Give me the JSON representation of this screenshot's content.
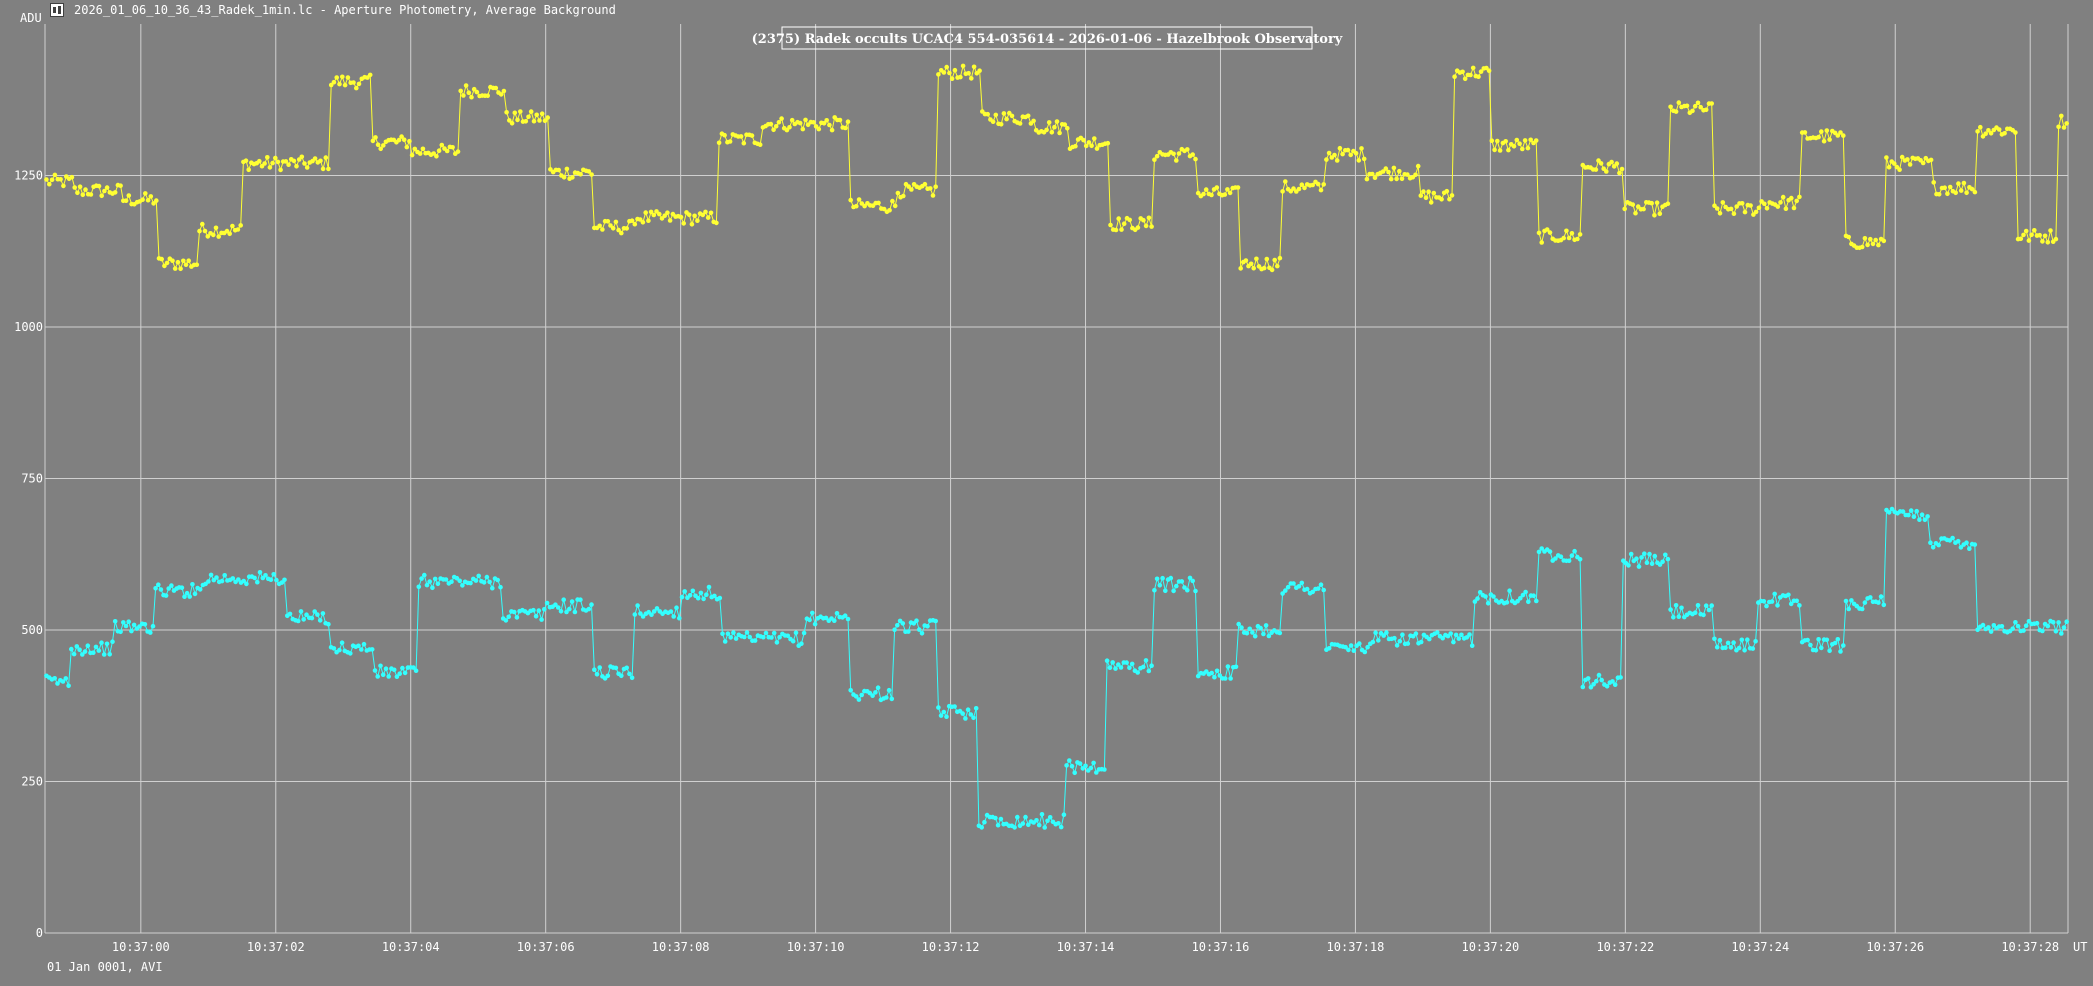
{
  "window": {
    "title": "2026_01_06_10_36_43_Radek_1min.lc - Aperture Photometry, Average Background",
    "icon": "lightcurve-app-icon"
  },
  "footer": {
    "text": "01 Jan 0001, AVI"
  },
  "colors": {
    "background": "#808080",
    "grid": "#d0d0d0",
    "text": "#ffffff",
    "target_series": "#ffff33",
    "comparison_series": "#33ffff"
  },
  "chart_data": {
    "type": "line",
    "title": "(2375) Radek occults UCAC4 554-035614 - 2026-01-06 - Hazelbrook Observatory",
    "ylabel": "ADU",
    "xlabel": "UT",
    "ylim": [
      0,
      1500
    ],
    "xlim": [
      "10:36:58.58",
      "10:37:28.56"
    ],
    "grid": true,
    "marker": "circle",
    "yticks": [
      0,
      250,
      500,
      750,
      1000,
      1250
    ],
    "xticks": [
      "10:37:00",
      "10:37:02",
      "10:37:04",
      "10:37:06",
      "10:37:08",
      "10:37:10",
      "10:37:12",
      "10:37:14",
      "10:37:16",
      "10:37:18",
      "10:37:20",
      "10:37:22",
      "10:37:24",
      "10:37:26",
      "10:37:28"
    ],
    "series": [
      {
        "color": "#ffff33",
        "segments": [
          [
            "10:36:58.58",
            "10:36:59.00",
            1240
          ],
          [
            "10:36:59.00",
            "10:36:59.72",
            1225
          ],
          [
            "10:36:59.72",
            "10:37:00.25",
            1210
          ],
          [
            "10:37:00.25",
            "10:37:00.85",
            1105
          ],
          [
            "10:37:00.85",
            "10:37:01.50",
            1160
          ],
          [
            "10:37:01.50",
            "10:37:02.80",
            1270
          ],
          [
            "10:37:02.80",
            "10:37:03.42",
            1405
          ],
          [
            "10:37:03.42",
            "10:37:04.00",
            1305
          ],
          [
            "10:37:04.00",
            "10:37:04.72",
            1290
          ],
          [
            "10:37:04.72",
            "10:37:05.40",
            1390
          ],
          [
            "10:37:05.40",
            "10:37:06.05",
            1345
          ],
          [
            "10:37:06.05",
            "10:37:06.70",
            1255
          ],
          [
            "10:37:06.70",
            "10:37:07.30",
            1165
          ],
          [
            "10:37:07.30",
            "10:37:08.55",
            1180
          ],
          [
            "10:37:08.55",
            "10:37:09.20",
            1310
          ],
          [
            "10:37:09.20",
            "10:37:10.50",
            1335
          ],
          [
            "10:37:10.50",
            "10:37:11.20",
            1200
          ],
          [
            "10:37:11.20",
            "10:37:11.80",
            1225
          ],
          [
            "10:37:11.80",
            "10:37:12.45",
            1420
          ],
          [
            "10:37:12.45",
            "10:37:13.25",
            1345
          ],
          [
            "10:37:13.25",
            "10:37:13.75",
            1330
          ],
          [
            "10:37:13.75",
            "10:37:14.35",
            1305
          ],
          [
            "10:37:14.35",
            "10:37:15.00",
            1170
          ],
          [
            "10:37:15.00",
            "10:37:15.65",
            1285
          ],
          [
            "10:37:15.65",
            "10:37:16.28",
            1220
          ],
          [
            "10:37:16.28",
            "10:37:16.90",
            1105
          ],
          [
            "10:37:16.90",
            "10:37:17.55",
            1230
          ],
          [
            "10:37:17.55",
            "10:37:18.15",
            1285
          ],
          [
            "10:37:18.15",
            "10:37:18.95",
            1255
          ],
          [
            "10:37:18.95",
            "10:37:19.45",
            1215
          ],
          [
            "10:37:19.45",
            "10:37:20.00",
            1420
          ],
          [
            "10:37:20.00",
            "10:37:20.70",
            1300
          ],
          [
            "10:37:20.70",
            "10:37:21.35",
            1150
          ],
          [
            "10:37:21.35",
            "10:37:21.97",
            1265
          ],
          [
            "10:37:21.97",
            "10:37:22.65",
            1195
          ],
          [
            "10:37:22.65",
            "10:37:23.30",
            1360
          ],
          [
            "10:37:23.30",
            "10:37:24.00",
            1195
          ],
          [
            "10:37:24.00",
            "10:37:24.60",
            1205
          ],
          [
            "10:37:24.60",
            "10:37:25.25",
            1315
          ],
          [
            "10:37:25.25",
            "10:37:25.85",
            1140
          ],
          [
            "10:37:25.85",
            "10:37:26.55",
            1270
          ],
          [
            "10:37:26.55",
            "10:37:27.20",
            1230
          ],
          [
            "10:37:27.20",
            "10:37:27.80",
            1325
          ],
          [
            "10:37:27.80",
            "10:37:28.40",
            1150
          ],
          [
            "10:37:28.40",
            "10:37:28.56",
            1340
          ]
        ]
      },
      {
        "color": "#33ffff",
        "segments": [
          [
            "10:36:58.58",
            "10:36:58.95",
            415
          ],
          [
            "10:36:58.95",
            "10:36:59.60",
            470
          ],
          [
            "10:36:59.60",
            "10:37:00.20",
            505
          ],
          [
            "10:37:00.20",
            "10:37:00.90",
            565
          ],
          [
            "10:37:00.90",
            "10:37:02.15",
            585
          ],
          [
            "10:37:02.15",
            "10:37:02.80",
            520
          ],
          [
            "10:37:02.80",
            "10:37:03.45",
            470
          ],
          [
            "10:37:03.45",
            "10:37:04.10",
            430
          ],
          [
            "10:37:04.10",
            "10:37:05.35",
            580
          ],
          [
            "10:37:05.35",
            "10:37:06.00",
            525
          ],
          [
            "10:37:06.00",
            "10:37:06.70",
            540
          ],
          [
            "10:37:06.70",
            "10:37:07.30",
            430
          ],
          [
            "10:37:07.30",
            "10:37:08.00",
            530
          ],
          [
            "10:37:08.00",
            "10:37:08.60",
            560
          ],
          [
            "10:37:08.60",
            "10:37:09.85",
            485
          ],
          [
            "10:37:09.85",
            "10:37:10.50",
            520
          ],
          [
            "10:37:10.50",
            "10:37:11.15",
            395
          ],
          [
            "10:37:11.15",
            "10:37:11.80",
            505
          ],
          [
            "10:37:11.80",
            "10:37:12.40",
            365
          ],
          [
            "10:37:12.40",
            "10:37:13.70",
            185
          ],
          [
            "10:37:13.70",
            "10:37:14.30",
            275
          ],
          [
            "10:37:14.30",
            "10:37:15.00",
            440
          ],
          [
            "10:37:15.00",
            "10:37:15.65",
            575
          ],
          [
            "10:37:15.65",
            "10:37:16.25",
            430
          ],
          [
            "10:37:16.25",
            "10:37:16.90",
            500
          ],
          [
            "10:37:16.90",
            "10:37:17.55",
            570
          ],
          [
            "10:37:17.55",
            "10:37:18.20",
            470
          ],
          [
            "10:37:18.20",
            "10:37:19.75",
            485
          ],
          [
            "10:37:19.75",
            "10:37:20.70",
            555
          ],
          [
            "10:37:20.70",
            "10:37:21.35",
            625
          ],
          [
            "10:37:21.35",
            "10:37:21.95",
            415
          ],
          [
            "10:37:21.95",
            "10:37:22.65",
            615
          ],
          [
            "10:37:22.65",
            "10:37:23.30",
            530
          ],
          [
            "10:37:23.30",
            "10:37:23.95",
            475
          ],
          [
            "10:37:23.95",
            "10:37:24.60",
            550
          ],
          [
            "10:37:24.60",
            "10:37:25.25",
            475
          ],
          [
            "10:37:25.25",
            "10:37:25.85",
            545
          ],
          [
            "10:37:25.85",
            "10:37:26.50",
            690
          ],
          [
            "10:37:26.50",
            "10:37:27.20",
            645
          ],
          [
            "10:37:27.20",
            "10:37:28.56",
            505
          ]
        ]
      }
    ]
  }
}
